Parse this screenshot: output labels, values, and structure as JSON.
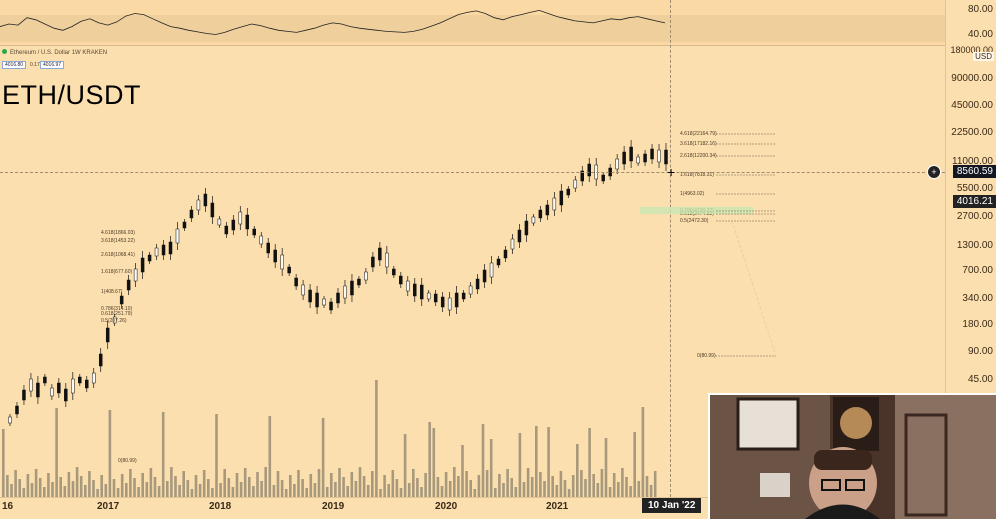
{
  "header": {
    "symbol_line": "Ethereum / U.S. Dollar  1W  KRAKEN",
    "chip_a": "4016.80",
    "chip_b": "4016.97",
    "chip_mid": "0.17",
    "title": "ETH/USDT"
  },
  "rsi": {
    "labels": [
      "80.00",
      "40.00"
    ],
    "series": [
      55,
      60,
      58,
      72,
      68,
      60,
      52,
      48,
      55,
      65,
      70,
      62,
      58,
      64,
      75,
      80,
      78,
      70,
      62,
      55,
      52,
      48,
      45,
      42,
      40,
      44,
      50,
      55,
      60,
      57,
      52,
      48,
      46,
      44,
      48,
      52,
      58,
      62,
      60,
      55,
      52,
      50,
      48,
      46,
      45,
      44,
      46,
      50,
      56,
      62,
      70,
      78,
      82,
      85,
      80,
      72,
      68,
      74,
      78,
      82,
      86,
      80,
      74,
      70,
      66,
      64,
      62,
      66,
      70,
      68,
      72,
      74,
      70,
      66,
      62
    ]
  },
  "price_axis": {
    "unit": "USD",
    "top_label": "180000.00",
    "labels": [
      "90000.00",
      "45000.00",
      "22500.00",
      "11000.00",
      "5500.00",
      "2700.00",
      "1300.00",
      "700.00",
      "340.00",
      "180.00",
      "90.00",
      "45.00"
    ],
    "crosshair_price": "8560.59",
    "last_price": "4016.21",
    "last_price_color": "#222222"
  },
  "time_axis": {
    "labels": [
      "16",
      "2017",
      "2018",
      "2019",
      "2020",
      "2021"
    ],
    "cursor_date": "10 Jan '22"
  },
  "fib_left": {
    "levels": [
      "4.618(1866.03)",
      "3.618(1453.22)",
      "2.618(1068.41)",
      "1.618(677.60)",
      "1(408.67)",
      "0.786(314.10)",
      "0.618(251.79)",
      "0.5(207.26)",
      "0(80.99)"
    ]
  },
  "fib_right": {
    "levels": [
      "4.618(22164.79)",
      "3.618(17182.16)",
      "2.618(12200.34)",
      "1.618(7818.31)",
      "1(4963.02)",
      "0.786(4130.27)",
      "0.618(3474.82)",
      "0.5(2472.30)",
      "0(80.99)"
    ]
  },
  "colors": {
    "background": "#fcdfae",
    "candle": "#111111",
    "volume": "#a8987c",
    "fib_zone": "#c8e6b0"
  }
}
